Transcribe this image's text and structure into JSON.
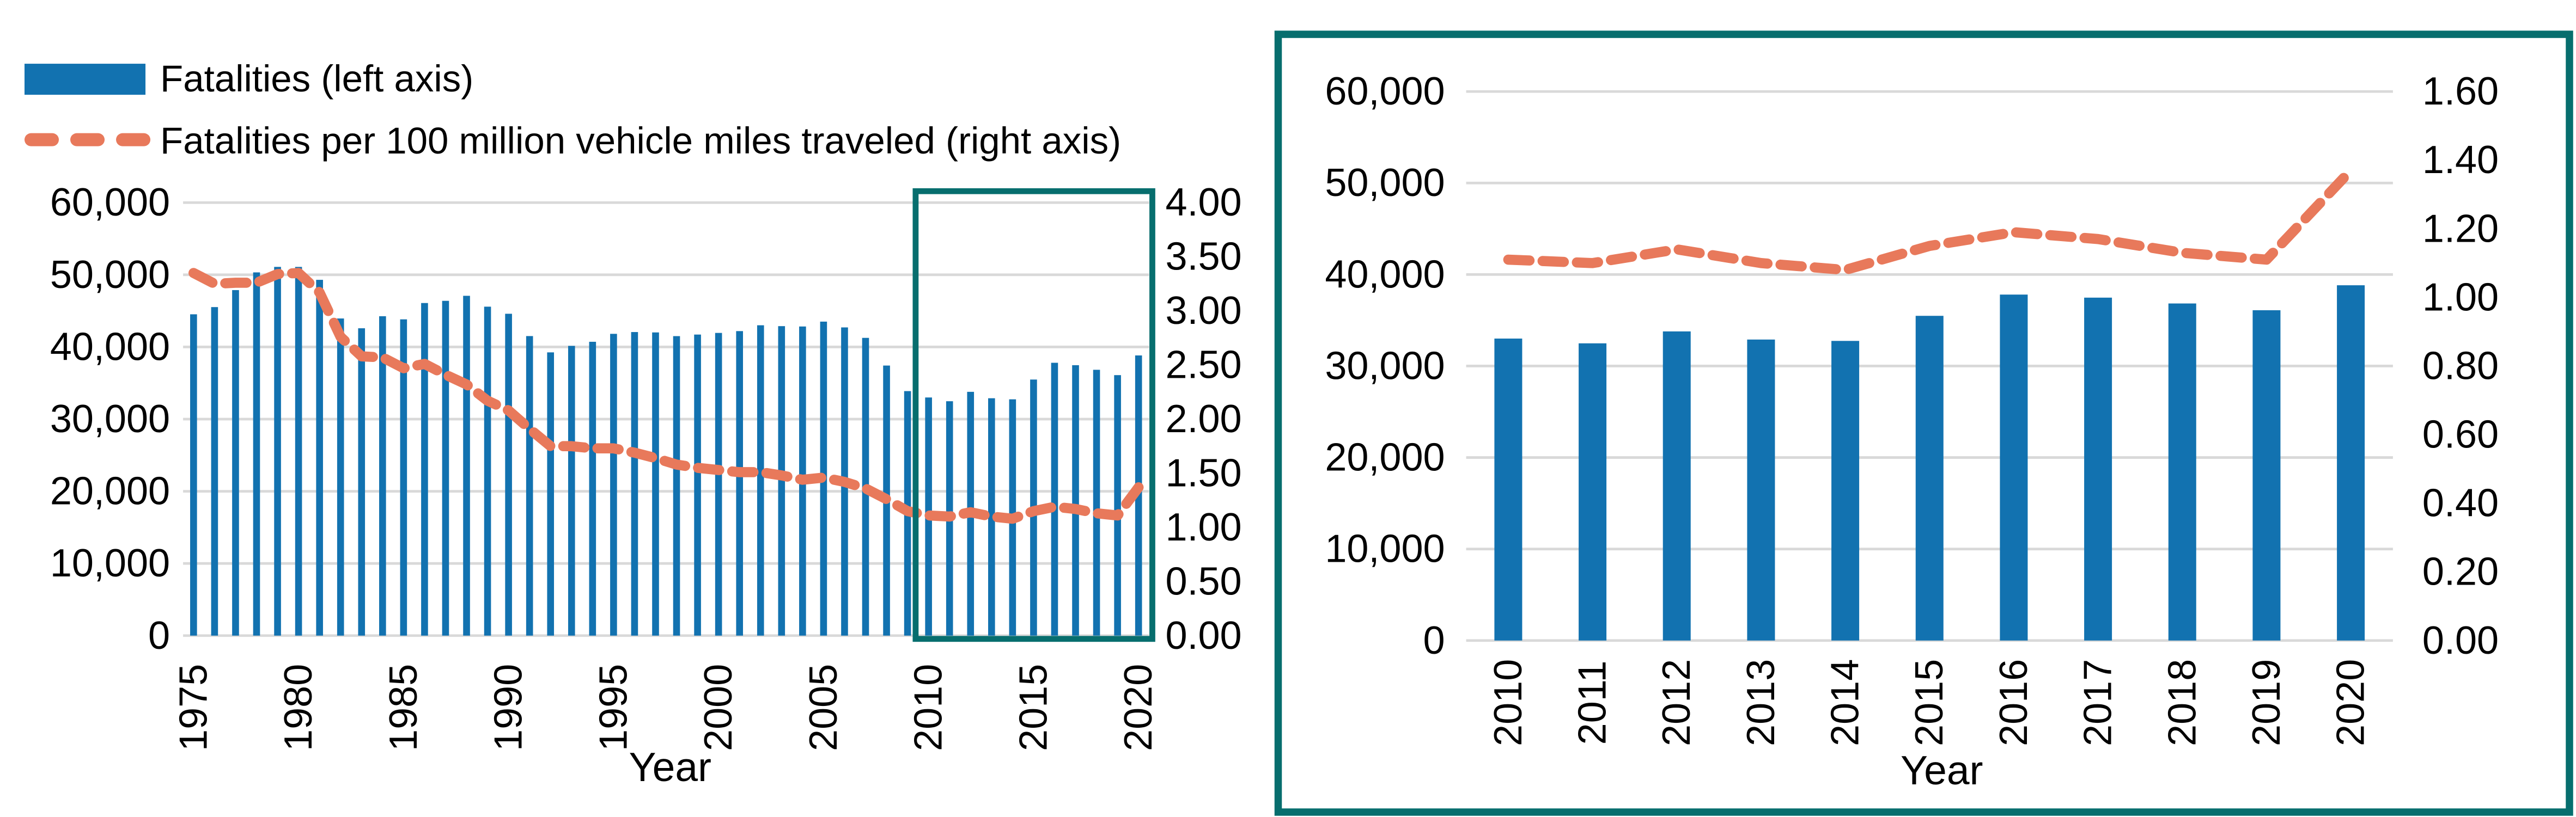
{
  "legend": {
    "items": [
      {
        "label": "Fatalities (left axis)",
        "swatch": "bar",
        "color": "#1272b0"
      },
      {
        "label": "Fatalities per 100 million vehicle miles traveled (right axis)",
        "swatch": "dashed-line",
        "color": "#e8795b"
      }
    ]
  },
  "colors": {
    "bar_blue": "#1272b0",
    "line_orange": "#e8795b",
    "highlight_teal": "#076e6e",
    "gridline_gray": "#d9d9d9",
    "text_black": "#000000"
  },
  "chart_data": [
    {
      "id": "overview-1975-2020",
      "type": "bar",
      "title": "",
      "xlabel": "Year",
      "ylabel": "",
      "grid": true,
      "gridline_color": "#d9d9d9",
      "x": [
        1975,
        1976,
        1977,
        1978,
        1979,
        1980,
        1981,
        1982,
        1983,
        1984,
        1985,
        1986,
        1987,
        1988,
        1989,
        1990,
        1991,
        1992,
        1993,
        1994,
        1995,
        1996,
        1997,
        1998,
        1999,
        2000,
        2001,
        2002,
        2003,
        2004,
        2005,
        2006,
        2007,
        2008,
        2009,
        2010,
        2011,
        2012,
        2013,
        2014,
        2015,
        2016,
        2017,
        2018,
        2019,
        2020
      ],
      "series": [
        {
          "name": "Fatalities (left axis)",
          "type": "bar",
          "axis": "left",
          "color": "#1272b0",
          "values": [
            44525,
            45523,
            47878,
            50331,
            51093,
            51091,
            49301,
            43945,
            42589,
            44257,
            43825,
            46087,
            46390,
            47087,
            45582,
            44599,
            41508,
            39250,
            40150,
            40716,
            41817,
            42065,
            42013,
            41501,
            41717,
            41945,
            42196,
            43005,
            42884,
            42836,
            43510,
            42708,
            41259,
            37423,
            33883,
            32999,
            32479,
            33782,
            32893,
            32744,
            35484,
            37806,
            37473,
            36835,
            36096,
            38824
          ]
        },
        {
          "name": "Fatalities per 100 million vehicle miles traveled (right axis)",
          "type": "dashed-line",
          "axis": "right",
          "color": "#e8795b",
          "values": [
            3.35,
            3.25,
            3.26,
            3.26,
            3.34,
            3.35,
            3.17,
            2.76,
            2.58,
            2.57,
            2.47,
            2.51,
            2.41,
            2.32,
            2.17,
            2.08,
            1.91,
            1.75,
            1.75,
            1.73,
            1.73,
            1.69,
            1.64,
            1.58,
            1.55,
            1.53,
            1.51,
            1.51,
            1.48,
            1.44,
            1.46,
            1.42,
            1.36,
            1.26,
            1.15,
            1.11,
            1.1,
            1.14,
            1.1,
            1.08,
            1.15,
            1.19,
            1.17,
            1.13,
            1.11,
            1.37
          ]
        }
      ],
      "left_axis": {
        "min": 0,
        "max": 60000,
        "step": 10000,
        "tick_labels": [
          "0",
          "10,000",
          "20,000",
          "30,000",
          "40,000",
          "50,000",
          "60,000"
        ]
      },
      "right_axis": {
        "min": 0,
        "max": 4.0,
        "step": 0.5,
        "tick_labels": [
          "0.00",
          "0.50",
          "1.00",
          "1.50",
          "2.00",
          "2.50",
          "3.00",
          "3.50",
          "4.00"
        ]
      },
      "x_ticks": [
        1975,
        1980,
        1985,
        1990,
        1995,
        2000,
        2005,
        2010,
        2015,
        2020
      ],
      "highlight_box": {
        "from_year": 2010,
        "to_year": 2020,
        "color": "#076e6e"
      }
    },
    {
      "id": "detail-2010-2020",
      "type": "bar",
      "title": "",
      "xlabel": "Year",
      "ylabel": "",
      "grid": true,
      "gridline_color": "#d9d9d9",
      "x": [
        2010,
        2011,
        2012,
        2013,
        2014,
        2015,
        2016,
        2017,
        2018,
        2019,
        2020
      ],
      "series": [
        {
          "name": "Fatalities (left axis)",
          "type": "bar",
          "axis": "left",
          "color": "#1272b0",
          "values": [
            32999,
            32479,
            33782,
            32893,
            32744,
            35484,
            37806,
            37473,
            36835,
            36096,
            38824
          ]
        },
        {
          "name": "Fatalities per 100 million vehicle miles traveled (right axis)",
          "type": "dashed-line",
          "axis": "right",
          "color": "#e8795b",
          "values": [
            1.11,
            1.1,
            1.14,
            1.1,
            1.08,
            1.15,
            1.19,
            1.17,
            1.13,
            1.11,
            1.37
          ]
        }
      ],
      "left_axis": {
        "min": 0,
        "max": 60000,
        "step": 10000,
        "tick_labels": [
          "0",
          "10,000",
          "20,000",
          "30,000",
          "40,000",
          "50,000",
          "60,000"
        ]
      },
      "right_axis": {
        "min": 0,
        "max": 1.6,
        "step": 0.2,
        "tick_labels": [
          "0.00",
          "0.20",
          "0.40",
          "0.60",
          "0.80",
          "1.00",
          "1.20",
          "1.40",
          "1.60"
        ]
      },
      "x_ticks": [
        2010,
        2011,
        2012,
        2013,
        2014,
        2015,
        2016,
        2017,
        2018,
        2019,
        2020
      ],
      "frame": {
        "color": "#076e6e"
      }
    }
  ]
}
